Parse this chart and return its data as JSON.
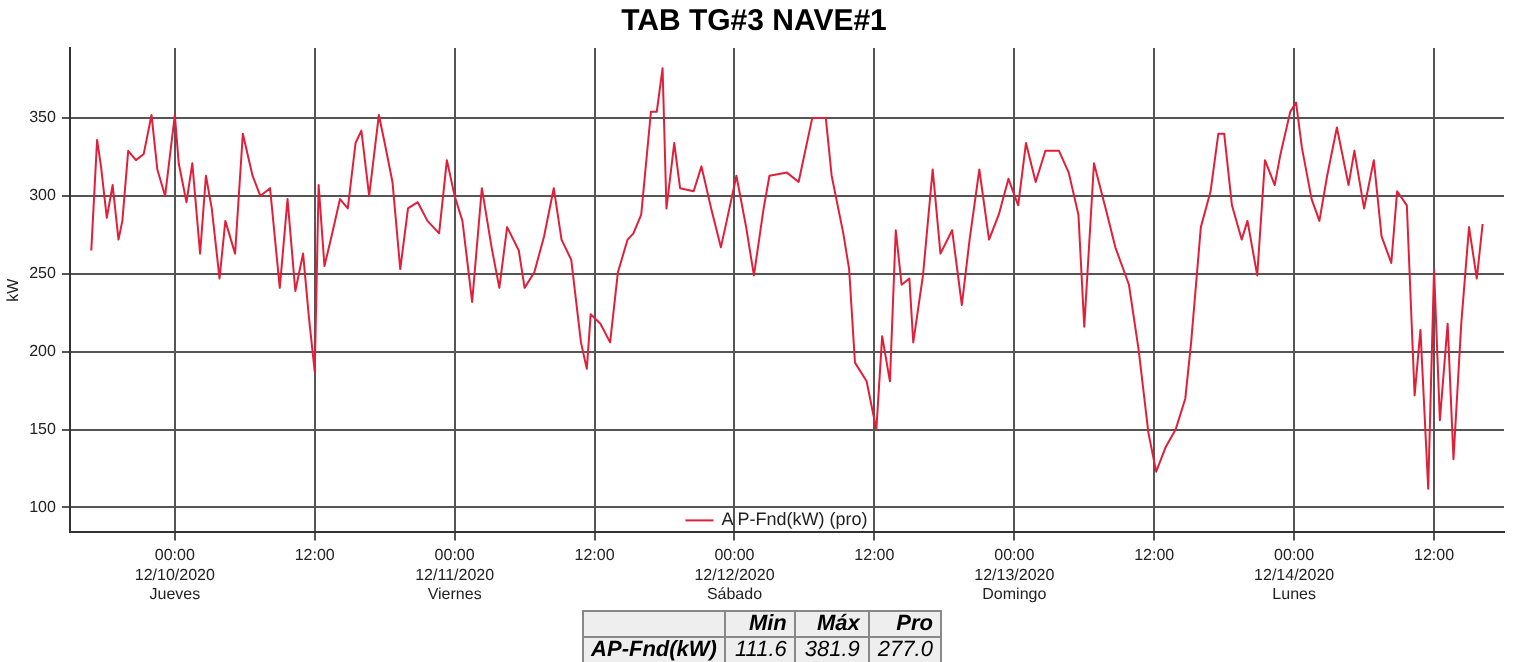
{
  "chart_data": {
    "type": "line",
    "title": "TAB TG#3 NAVE#1",
    "ylabel": "kW",
    "x": [
      "2020-12-09T16:50",
      "2020-12-09T17:20",
      "2020-12-09T17:40",
      "2020-12-09T18:10",
      "2020-12-09T18:40",
      "2020-12-09T19:10",
      "2020-12-09T19:30",
      "2020-12-09T20:00",
      "2020-12-09T20:40",
      "2020-12-09T21:20",
      "2020-12-09T22:00",
      "2020-12-09T22:30",
      "2020-12-09T23:10",
      "2020-12-10T00:00",
      "2020-12-10T00:20",
      "2020-12-10T01:00",
      "2020-12-10T01:30",
      "2020-12-10T02:10",
      "2020-12-10T02:40",
      "2020-12-10T03:10",
      "2020-12-10T03:50",
      "2020-12-10T04:20",
      "2020-12-10T05:10",
      "2020-12-10T05:50",
      "2020-12-10T06:40",
      "2020-12-10T07:20",
      "2020-12-10T08:10",
      "2020-12-10T09:00",
      "2020-12-10T09:40",
      "2020-12-10T10:20",
      "2020-12-10T11:00",
      "2020-12-10T11:30",
      "2020-12-10T12:00",
      "2020-12-10T12:20",
      "2020-12-10T12:50",
      "2020-12-10T13:30",
      "2020-12-10T14:10",
      "2020-12-10T14:50",
      "2020-12-10T15:30",
      "2020-12-10T16:00",
      "2020-12-10T16:40",
      "2020-12-10T17:30",
      "2020-12-10T18:00",
      "2020-12-10T18:40",
      "2020-12-10T19:20",
      "2020-12-10T20:00",
      "2020-12-10T20:50",
      "2020-12-10T21:40",
      "2020-12-10T22:40",
      "2020-12-10T23:20",
      "2020-12-11T00:00",
      "2020-12-11T00:40",
      "2020-12-11T01:30",
      "2020-12-11T02:20",
      "2020-12-11T03:10",
      "2020-12-11T03:50",
      "2020-12-11T04:30",
      "2020-12-11T05:30",
      "2020-12-11T06:00",
      "2020-12-11T06:50",
      "2020-12-11T07:40",
      "2020-12-11T08:30",
      "2020-12-11T09:10",
      "2020-12-11T10:00",
      "2020-12-11T10:50",
      "2020-12-11T11:20",
      "2020-12-11T11:40",
      "2020-12-11T12:30",
      "2020-12-11T13:20",
      "2020-12-11T14:00",
      "2020-12-11T14:50",
      "2020-12-11T15:20",
      "2020-12-11T16:00",
      "2020-12-11T16:50",
      "2020-12-11T17:20",
      "2020-12-11T17:50",
      "2020-12-11T18:10",
      "2020-12-11T18:50",
      "2020-12-11T19:20",
      "2020-12-11T20:30",
      "2020-12-11T21:10",
      "2020-12-11T22:00",
      "2020-12-11T22:50",
      "2020-12-11T23:20",
      "2020-12-12T00:10",
      "2020-12-12T01:00",
      "2020-12-12T01:40",
      "2020-12-12T02:30",
      "2020-12-12T03:00",
      "2020-12-12T04:30",
      "2020-12-12T05:30",
      "2020-12-12T06:40",
      "2020-12-12T07:50",
      "2020-12-12T08:20",
      "2020-12-12T09:20",
      "2020-12-12T09:50",
      "2020-12-12T10:20",
      "2020-12-12T11:20",
      "2020-12-12T12:10",
      "2020-12-12T12:40",
      "2020-12-12T13:20",
      "2020-12-12T13:50",
      "2020-12-12T14:20",
      "2020-12-12T15:00",
      "2020-12-12T15:20",
      "2020-12-12T16:10",
      "2020-12-12T17:00",
      "2020-12-12T17:40",
      "2020-12-12T18:40",
      "2020-12-12T19:30",
      "2020-12-12T20:10",
      "2020-12-12T21:00",
      "2020-12-12T21:50",
      "2020-12-12T22:40",
      "2020-12-12T23:30",
      "2020-12-13T00:20",
      "2020-12-13T01:00",
      "2020-12-13T01:50",
      "2020-12-13T02:40",
      "2020-12-13T03:50",
      "2020-12-13T04:40",
      "2020-12-13T05:30",
      "2020-12-13T06:00",
      "2020-12-13T06:50",
      "2020-12-13T07:50",
      "2020-12-13T08:40",
      "2020-12-13T09:50",
      "2020-12-13T10:40",
      "2020-12-13T11:30",
      "2020-12-13T12:10",
      "2020-12-13T13:00",
      "2020-12-13T13:50",
      "2020-12-13T14:40",
      "2020-12-13T15:10",
      "2020-12-13T16:00",
      "2020-12-13T16:50",
      "2020-12-13T17:30",
      "2020-12-13T18:00",
      "2020-12-13T18:40",
      "2020-12-13T19:30",
      "2020-12-13T20:00",
      "2020-12-13T20:50",
      "2020-12-13T21:30",
      "2020-12-13T22:20",
      "2020-12-13T22:50",
      "2020-12-13T23:40",
      "2020-12-14T00:10",
      "2020-12-14T00:40",
      "2020-12-14T01:30",
      "2020-12-14T02:10",
      "2020-12-14T02:50",
      "2020-12-14T03:40",
      "2020-12-14T04:40",
      "2020-12-14T05:10",
      "2020-12-14T06:00",
      "2020-12-14T06:50",
      "2020-12-14T07:30",
      "2020-12-14T08:20",
      "2020-12-14T08:50",
      "2020-12-14T09:40",
      "2020-12-14T10:20",
      "2020-12-14T10:50",
      "2020-12-14T11:30",
      "2020-12-14T12:00",
      "2020-12-14T12:30",
      "2020-12-14T13:10",
      "2020-12-14T13:40",
      "2020-12-14T14:20",
      "2020-12-14T15:00",
      "2020-12-14T15:40",
      "2020-12-14T16:10"
    ],
    "series": [
      {
        "name": "A P-Fnd(kW) (pro)",
        "color": "#e0203a",
        "values": [
          265,
          336,
          319,
          286,
          307,
          272,
          284,
          329,
          323,
          327,
          352,
          317,
          300,
          352,
          321,
          296,
          321,
          263,
          313,
          292,
          247,
          284,
          263,
          340,
          313,
          300,
          305,
          241,
          298,
          239,
          263,
          222,
          187,
          307,
          255,
          276,
          298,
          292,
          334,
          342,
          300,
          352,
          334,
          309,
          253,
          292,
          296,
          284,
          276,
          323,
          300,
          284,
          232,
          305,
          267,
          241,
          280,
          265,
          241,
          251,
          274,
          305,
          272,
          259,
          206,
          189,
          224,
          218,
          206,
          251,
          272,
          276,
          288,
          354,
          354,
          382,
          292,
          334,
          305,
          303,
          319,
          292,
          267,
          284,
          313,
          280,
          249,
          292,
          313,
          315,
          309,
          350,
          350,
          313,
          276,
          253,
          193,
          181,
          150,
          210,
          181,
          278,
          243,
          247,
          206,
          249,
          317,
          263,
          278,
          230,
          272,
          317,
          272,
          288,
          311,
          294,
          334,
          309,
          329,
          329,
          315,
          288,
          216,
          321,
          292,
          267,
          243,
          201,
          148,
          123,
          139,
          150,
          170,
          206,
          280,
          303,
          340,
          340,
          294,
          272,
          284,
          249,
          323,
          307,
          327,
          354,
          360,
          331,
          298,
          284,
          313,
          344,
          307,
          329,
          292,
          323,
          274,
          257,
          303,
          294,
          172,
          214,
          112,
          253,
          156,
          218,
          131,
          218,
          280,
          247,
          282
        ]
      }
    ],
    "xlim": [
      "2020-12-09T15:00",
      "2020-12-14T18:00"
    ],
    "xticks": [
      {
        "value": "2020-12-10T00:00",
        "label": "00:00\n12/10/2020\nJueves"
      },
      {
        "value": "2020-12-10T12:00",
        "label": "12:00"
      },
      {
        "value": "2020-12-11T00:00",
        "label": "00:00\n12/11/2020\nViernes"
      },
      {
        "value": "2020-12-11T12:00",
        "label": "12:00"
      },
      {
        "value": "2020-12-12T00:00",
        "label": "00:00\n12/12/2020\nSábado"
      },
      {
        "value": "2020-12-12T12:00",
        "label": "12:00"
      },
      {
        "value": "2020-12-13T00:00",
        "label": "00:00\n12/13/2020\nDomingo"
      },
      {
        "value": "2020-12-13T12:00",
        "label": "12:00"
      },
      {
        "value": "2020-12-14T00:00",
        "label": "00:00\n12/14/2020\nLunes"
      },
      {
        "value": "2020-12-14T12:00",
        "label": "12:00"
      }
    ],
    "ylim": [
      84,
      395
    ],
    "yticks": [
      100,
      150,
      200,
      250,
      300,
      350
    ],
    "grid": true,
    "legend": "bottom",
    "marker": "none",
    "line_style": "solid",
    "annotations": [
      "Min",
      "Máx",
      "Pro",
      "AP-Fnd(kW)",
      "111.6",
      "381.9",
      "277.0"
    ]
  }
}
